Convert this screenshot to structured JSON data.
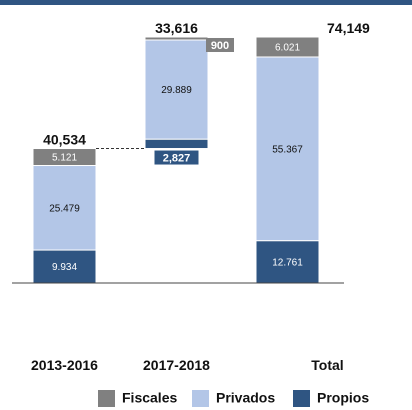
{
  "chart_data": {
    "type": "bar",
    "stacked": true,
    "waterfall": true,
    "categories": [
      "2013-2016",
      "2017-2018",
      "Total"
    ],
    "series": [
      {
        "name": "Propios",
        "values": [
          9934,
          2827,
          12761
        ],
        "labels": [
          "9.934",
          "2,827",
          "12.761"
        ]
      },
      {
        "name": "Privados",
        "values": [
          25479,
          29889,
          55367
        ],
        "labels": [
          "25.479",
          "29.889",
          "55.367"
        ]
      },
      {
        "name": "Fiscales",
        "values": [
          5121,
          900,
          6021
        ],
        "labels": [
          "5.121",
          "900",
          "6.021"
        ]
      }
    ],
    "totals": [
      {
        "category": "2013-2016",
        "label": "40,534"
      },
      {
        "category": "2017-2018",
        "label": "33,616"
      },
      {
        "category": "Total",
        "label": "74,149"
      }
    ],
    "legend": [
      "Fiscales",
      "Privados",
      "Propios"
    ],
    "legend_position": "bottom",
    "colors": {
      "Fiscales": "#808080",
      "Privados": "#b3c6e7",
      "Propios": "#2f5582"
    },
    "ylim": [
      0,
      74149
    ],
    "grid": false
  }
}
